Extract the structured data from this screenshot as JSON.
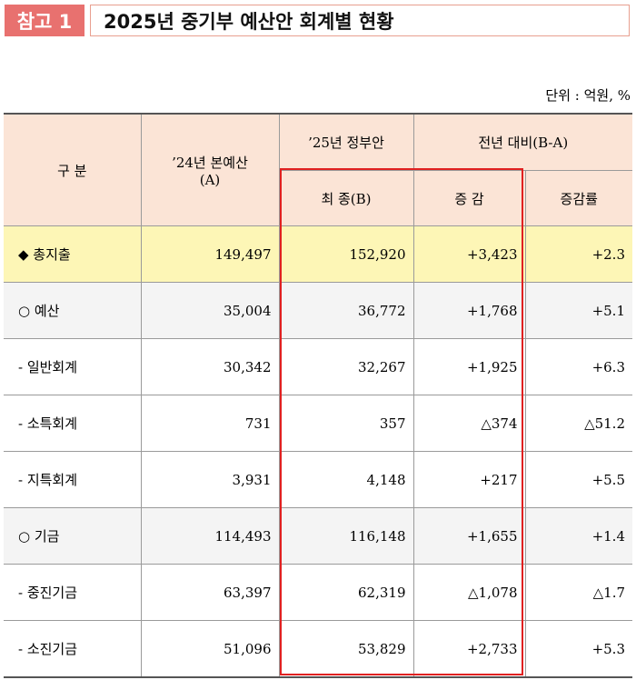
{
  "title": {
    "badge": "참고 1",
    "text": "2025년 중기부 예산안 회계별 현황"
  },
  "unit": "단위 : 억원, %",
  "table": {
    "headers": {
      "category": "구 분",
      "budget_2024_line1": "’24년 본예산",
      "budget_2024_line2": "(A)",
      "gov_2025": "’25년 정부안",
      "final": "최 종(B)",
      "yoy": "전년 대비(B-A)",
      "change": "증 감",
      "rate": "증감률"
    },
    "rows": [
      {
        "label": "◆ 총지출",
        "a": "149,497",
        "b": "152,920",
        "change": "+3,423",
        "rate": "+2.3"
      },
      {
        "label": "○  예산",
        "a": "35,004",
        "b": "36,772",
        "change": "+1,768",
        "rate": "+5.1"
      },
      {
        "label": "- 일반회계",
        "a": "30,342",
        "b": "32,267",
        "change": "+1,925",
        "rate": "+6.3"
      },
      {
        "label": "- 소특회계",
        "a": "731",
        "b": "357",
        "change": "△374",
        "rate": "△51.2"
      },
      {
        "label": "- 지특회계",
        "a": "3,931",
        "b": "4,148",
        "change": "+217",
        "rate": "+5.5"
      },
      {
        "label": "○  기금",
        "a": "114,493",
        "b": "116,148",
        "change": "+1,655",
        "rate": "+1.4"
      },
      {
        "label": "- 중진기금",
        "a": "63,397",
        "b": "62,319",
        "change": "△1,078",
        "rate": "△1.7"
      },
      {
        "label": "- 소진기금",
        "a": "51,096",
        "b": "53,829",
        "change": "+2,733",
        "rate": "+5.3"
      }
    ]
  },
  "colors": {
    "badge": "#e8716f",
    "header_bg": "#fbe4d6",
    "total_row_bg": "#fdf6b6",
    "highlight_border": "#e02020"
  }
}
